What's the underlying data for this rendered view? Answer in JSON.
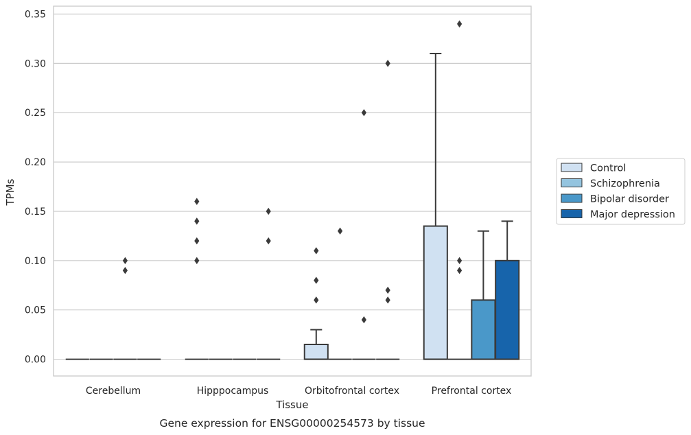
{
  "chart_data": {
    "type": "box",
    "xlabel": "Tissue",
    "ylabel": "TPMs",
    "caption": "Gene expression for ENSG00000254573 by tissue",
    "ylim": [
      -0.017,
      0.358
    ],
    "yticks": [
      0.0,
      0.05,
      0.1,
      0.15,
      0.2,
      0.25,
      0.3,
      0.35
    ],
    "ytick_labels": [
      "0.00",
      "0.05",
      "0.10",
      "0.15",
      "0.20",
      "0.25",
      "0.30",
      "0.35"
    ],
    "grid": "horizontal",
    "legend_position": "right",
    "categories": [
      "Cerebellum",
      "Hipppocampus",
      "Orbitofrontal cortex",
      "Prefrontal cortex"
    ],
    "series": [
      {
        "name": "Control",
        "color": "#d0e1f2",
        "boxes": [
          {
            "q1": 0,
            "median": 0,
            "q3": 0,
            "whislo": 0,
            "whishi": 0,
            "fliers": []
          },
          {
            "q1": 0,
            "median": 0,
            "q3": 0,
            "whislo": 0,
            "whishi": 0,
            "fliers": [
              0.1,
              0.12,
              0.14,
              0.16
            ]
          },
          {
            "q1": 0,
            "median": 0,
            "q3": 0.015,
            "whislo": 0,
            "whishi": 0.03,
            "fliers": [
              0.06,
              0.08,
              0.11
            ]
          },
          {
            "q1": 0,
            "median": 0,
            "q3": 0.135,
            "whislo": 0,
            "whishi": 0.31,
            "fliers": []
          }
        ]
      },
      {
        "name": "Schizophrenia",
        "color": "#94c4df",
        "boxes": [
          {
            "q1": 0,
            "median": 0,
            "q3": 0,
            "whislo": 0,
            "whishi": 0,
            "fliers": []
          },
          {
            "q1": 0,
            "median": 0,
            "q3": 0,
            "whislo": 0,
            "whishi": 0,
            "fliers": []
          },
          {
            "q1": 0,
            "median": 0,
            "q3": 0,
            "whislo": 0,
            "whishi": 0,
            "fliers": [
              0.13
            ]
          },
          {
            "q1": 0,
            "median": 0,
            "q3": 0,
            "whislo": 0,
            "whishi": 0,
            "fliers": [
              0.09,
              0.1,
              0.34
            ]
          }
        ]
      },
      {
        "name": "Bipolar disorder",
        "color": "#4a98c9",
        "boxes": [
          {
            "q1": 0,
            "median": 0,
            "q3": 0,
            "whislo": 0,
            "whishi": 0,
            "fliers": [
              0.09,
              0.1
            ]
          },
          {
            "q1": 0,
            "median": 0,
            "q3": 0,
            "whislo": 0,
            "whishi": 0,
            "fliers": []
          },
          {
            "q1": 0,
            "median": 0,
            "q3": 0,
            "whislo": 0,
            "whishi": 0,
            "fliers": [
              0.04,
              0.25
            ]
          },
          {
            "q1": 0,
            "median": 0,
            "q3": 0.06,
            "whislo": 0,
            "whishi": 0.13,
            "fliers": []
          }
        ]
      },
      {
        "name": "Major depression",
        "color": "#1764ab",
        "boxes": [
          {
            "q1": 0,
            "median": 0,
            "q3": 0,
            "whislo": 0,
            "whishi": 0,
            "fliers": []
          },
          {
            "q1": 0,
            "median": 0,
            "q3": 0,
            "whislo": 0,
            "whishi": 0,
            "fliers": [
              0.12,
              0.15
            ]
          },
          {
            "q1": 0,
            "median": 0,
            "q3": 0,
            "whislo": 0,
            "whishi": 0,
            "fliers": [
              0.06,
              0.07,
              0.3
            ]
          },
          {
            "q1": 0,
            "median": 0,
            "q3": 0.1,
            "whislo": 0,
            "whishi": 0.14,
            "fliers": []
          }
        ]
      }
    ]
  }
}
